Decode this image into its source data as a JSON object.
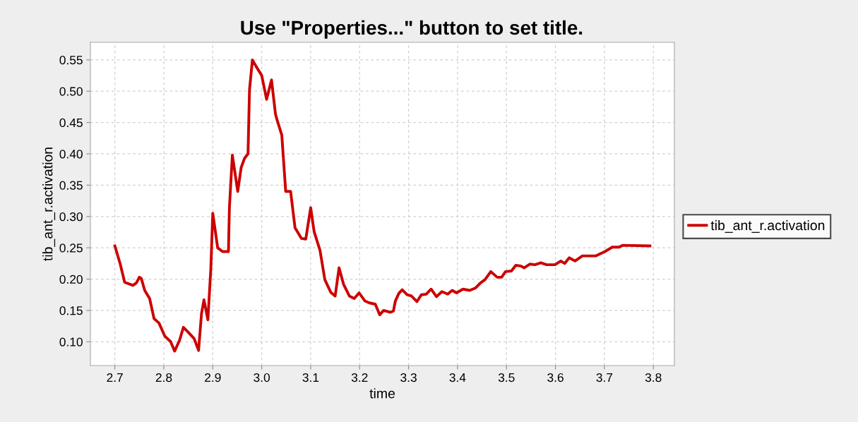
{
  "chart_data": {
    "type": "line",
    "title": "Use \"Properties...\" button to set title.",
    "xlabel": "time",
    "ylabel": "tib_ant_r.activation",
    "xlim": [
      2.65,
      3.843
    ],
    "xticks": [
      {
        "value": 2.7,
        "label": "2.7"
      },
      {
        "value": 2.8,
        "label": "2.8"
      },
      {
        "value": 2.9,
        "label": "2.9"
      },
      {
        "value": 3.0,
        "label": "3.0"
      },
      {
        "value": 3.1,
        "label": "3.1"
      },
      {
        "value": 3.2,
        "label": "3.2"
      },
      {
        "value": 3.3,
        "label": "3.3"
      },
      {
        "value": 3.4,
        "label": "3.4"
      },
      {
        "value": 3.5,
        "label": "3.5"
      },
      {
        "value": 3.6,
        "label": "3.6"
      },
      {
        "value": 3.7,
        "label": "3.7"
      },
      {
        "value": 3.8,
        "label": "3.8"
      }
    ],
    "ylim": [
      0.062,
      0.578
    ],
    "yticks": [
      {
        "value": 0.1,
        "label": "0.10"
      },
      {
        "value": 0.15,
        "label": "0.15"
      },
      {
        "value": 0.2,
        "label": "0.20"
      },
      {
        "value": 0.25,
        "label": "0.25"
      },
      {
        "value": 0.3,
        "label": "0.30"
      },
      {
        "value": 0.35,
        "label": "0.35"
      },
      {
        "value": 0.4,
        "label": "0.40"
      },
      {
        "value": 0.45,
        "label": "0.45"
      },
      {
        "value": 0.5,
        "label": "0.50"
      },
      {
        "value": 0.55,
        "label": "0.55"
      }
    ],
    "grid": true,
    "legend": "right",
    "marker": "none",
    "line_style": "solid",
    "series": [
      {
        "name": "tib_ant_r.activation",
        "color": "#cc0000",
        "x": [
          2.7,
          2.711,
          2.72,
          2.737,
          2.744,
          2.75,
          2.754,
          2.761,
          2.771,
          2.78,
          2.79,
          2.802,
          2.814,
          2.822,
          2.832,
          2.84,
          2.85,
          2.862,
          2.871,
          2.877,
          2.882,
          2.89,
          2.896,
          2.9,
          2.91,
          2.92,
          2.932,
          2.934,
          2.94,
          2.951,
          2.958,
          2.965,
          2.972,
          2.975,
          2.981,
          2.989,
          3.0,
          3.01,
          3.02,
          3.028,
          3.031,
          3.041,
          3.049,
          3.059,
          3.068,
          3.081,
          3.09,
          3.1,
          3.107,
          3.119,
          3.129,
          3.141,
          3.15,
          3.158,
          3.167,
          3.179,
          3.189,
          3.199,
          3.211,
          3.22,
          3.232,
          3.241,
          3.249,
          3.263,
          3.269,
          3.273,
          3.28,
          3.287,
          3.297,
          3.306,
          3.317,
          3.326,
          3.336,
          3.346,
          3.357,
          3.368,
          3.38,
          3.389,
          3.398,
          3.411,
          3.425,
          3.437,
          3.447,
          3.456,
          3.468,
          3.481,
          3.49,
          3.498,
          3.51,
          3.519,
          3.529,
          3.536,
          3.548,
          3.558,
          3.57,
          3.582,
          3.599,
          3.611,
          3.619,
          3.628,
          3.64,
          3.655,
          3.682,
          3.701,
          3.716,
          3.73,
          3.737,
          3.793
        ],
        "values": [
          0.253,
          0.224,
          0.195,
          0.19,
          0.194,
          0.203,
          0.201,
          0.182,
          0.169,
          0.137,
          0.13,
          0.109,
          0.1,
          0.085,
          0.102,
          0.123,
          0.115,
          0.105,
          0.086,
          0.145,
          0.167,
          0.135,
          0.216,
          0.305,
          0.25,
          0.244,
          0.244,
          0.314,
          0.398,
          0.34,
          0.378,
          0.393,
          0.4,
          0.502,
          0.55,
          0.539,
          0.525,
          0.487,
          0.518,
          0.464,
          0.455,
          0.43,
          0.34,
          0.34,
          0.282,
          0.265,
          0.264,
          0.314,
          0.276,
          0.246,
          0.199,
          0.179,
          0.173,
          0.218,
          0.192,
          0.173,
          0.169,
          0.178,
          0.165,
          0.162,
          0.16,
          0.143,
          0.15,
          0.147,
          0.149,
          0.165,
          0.177,
          0.183,
          0.175,
          0.173,
          0.164,
          0.175,
          0.176,
          0.184,
          0.172,
          0.18,
          0.176,
          0.182,
          0.178,
          0.184,
          0.182,
          0.186,
          0.194,
          0.199,
          0.212,
          0.203,
          0.203,
          0.212,
          0.213,
          0.222,
          0.221,
          0.218,
          0.224,
          0.223,
          0.226,
          0.223,
          0.223,
          0.229,
          0.225,
          0.234,
          0.229,
          0.237,
          0.237,
          0.244,
          0.251,
          0.251,
          0.254,
          0.253
        ]
      }
    ]
  }
}
